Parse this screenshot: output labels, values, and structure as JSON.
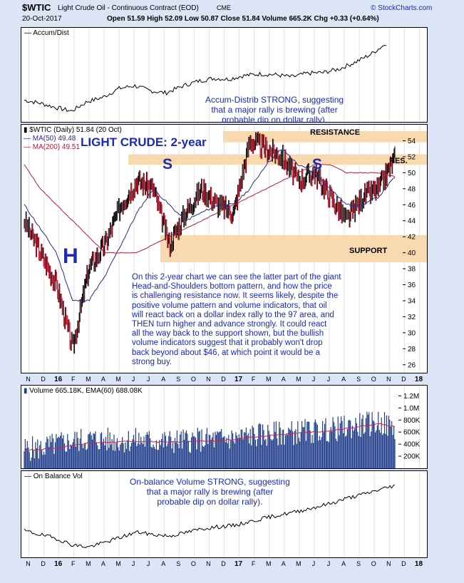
{
  "header": {
    "symbol": "$WTIC",
    "name": "Light Crude Oil - Continuous Contract (EOD)",
    "exchange": "CME",
    "site": "© StockCharts.com",
    "date": "20-Oct-2017",
    "quote": "Open 51.59  High 52.09  Low 50.87  Close 51.84  Volume 665.2K  Chg +0.33 (+0.64%)"
  },
  "accum_panel": {
    "title": "Accum/Dist",
    "note": [
      "Accum-Distrib STRONG, suggesting",
      "that a major rally is brewing (after",
      "probable dip on dollar rally)."
    ]
  },
  "price_panel": {
    "legend_price": "$WTIC (Daily) 51.84 (20 Oct)",
    "legend_ma50": "MA(50) 49.48",
    "legend_ma200": "MA(200) 49.51",
    "big_title": "LIGHT CRUDE: 2-year",
    "label_h": "H",
    "label_s1": "S",
    "label_s2": "S",
    "resistance": "RESISTANCE",
    "res": "RES.",
    "support": "SUPPORT",
    "commentary": [
      "On this 2-year chart we can see the latter part of the giant",
      "Head-and-Shoulders bottom pattern, and how the price",
      "is challenging resistance now. It seems likely, despite the",
      "positive volume pattern and volume indicators, that oil",
      "will react back on a dollar index rally to the 97 area, and",
      "THEN turn higher and advance strongly. It could react",
      "all the way back to the support shown, but the bullish",
      "volume indicators suggest that it probably won't drop",
      "back beyond about $46, at which point it would be a",
      "strong buy."
    ]
  },
  "volume_panel": {
    "legend": "Volume 665.18K, EMA(60) 688.08K"
  },
  "obv_panel": {
    "title": "On Balance Vol",
    "note": [
      "On-balance Volume STRONG, suggesting",
      "that a major rally is brewing (after",
      "probable dip on dollar rally)."
    ]
  },
  "month_labels": [
    "N",
    "D",
    "16",
    "F",
    "M",
    "A",
    "M",
    "J",
    "J",
    "A",
    "S",
    "O",
    "N",
    "D",
    "17",
    "F",
    "M",
    "A",
    "M",
    "J",
    "J",
    "A",
    "S",
    "O",
    "N",
    "D",
    "18"
  ],
  "colors": {
    "background": "#dbe5f5",
    "accent_text": "#1b2bb5",
    "price_up": "#000000",
    "price_down": "#c0102a",
    "ma50": "#2a2a8c",
    "ma200": "#b0203a",
    "zone": "#f8d9b0",
    "volume_bar": "#1f3d8a",
    "ema": "#d02050"
  },
  "chart_data": [
    {
      "type": "line",
      "title": "Accum/Dist",
      "x": [
        "N",
        "D",
        "16",
        "F",
        "M",
        "A",
        "M",
        "J",
        "J",
        "A",
        "S",
        "O",
        "N",
        "D",
        "17",
        "F",
        "M",
        "A",
        "M",
        "J",
        "J",
        "A",
        "S",
        "O"
      ],
      "values": [
        0.2,
        0.16,
        0.1,
        0.05,
        0.18,
        0.24,
        0.36,
        0.4,
        0.33,
        0.3,
        0.39,
        0.46,
        0.5,
        0.49,
        0.54,
        0.56,
        0.55,
        0.52,
        0.57,
        0.58,
        0.63,
        0.72,
        0.83,
        0.98
      ]
    },
    {
      "type": "line",
      "title": "LIGHT CRUDE: 2-year",
      "yticks": [
        26,
        28,
        30,
        32,
        34,
        36,
        38,
        40,
        42,
        44,
        46,
        48,
        50,
        52,
        54
      ],
      "ylim": [
        25,
        56
      ],
      "x": [
        "N",
        "D",
        "16",
        "F",
        "M",
        "A",
        "M",
        "J",
        "J",
        "A",
        "S",
        "O",
        "N",
        "D",
        "17",
        "F",
        "M",
        "A",
        "M",
        "J",
        "J",
        "A",
        "S",
        "O"
      ],
      "series": [
        {
          "name": "$WTIC",
          "values": [
            44,
            40,
            36,
            28,
            38,
            41,
            46,
            49,
            48,
            41,
            45,
            48,
            46,
            45,
            54,
            53,
            52,
            49,
            50,
            47,
            44,
            47,
            48,
            51.84
          ]
        },
        {
          "name": "MA(50)",
          "values": [
            46,
            43,
            40,
            34,
            34,
            37,
            41,
            45,
            48,
            46,
            44,
            45,
            46,
            46,
            48,
            51,
            53,
            51,
            50,
            48,
            46,
            46,
            47,
            49.48
          ]
        },
        {
          "name": "MA(200)",
          "values": [
            51,
            48,
            46,
            44,
            42,
            40,
            40,
            40,
            41,
            42,
            43,
            44,
            45,
            46,
            47,
            48,
            49,
            50,
            51,
            51,
            50,
            50,
            50,
            49.51
          ]
        }
      ],
      "zones": [
        {
          "label": "RESISTANCE",
          "from": 53.8,
          "to": 55.2
        },
        {
          "label": "RES.",
          "from": 51.0,
          "to": 52.3
        },
        {
          "label": "SUPPORT",
          "from": 38.8,
          "to": 42.2
        }
      ]
    },
    {
      "type": "bar",
      "title": "Volume 665.18K, EMA(60) 688.08K",
      "yticks": [
        "200K",
        "400K",
        "600K",
        "800K",
        "1.0M",
        "1.2M"
      ],
      "ylim": [
        0,
        1300
      ],
      "x": [
        "N",
        "D",
        "16",
        "F",
        "M",
        "A",
        "M",
        "J",
        "J",
        "A",
        "S",
        "O",
        "N",
        "D",
        "17",
        "F",
        "M",
        "A",
        "M",
        "J",
        "J",
        "A",
        "S",
        "O"
      ],
      "series": [
        {
          "name": "Volume",
          "values": [
            320,
            330,
            400,
            450,
            480,
            470,
            460,
            470,
            450,
            440,
            460,
            470,
            480,
            500,
            540,
            560,
            580,
            600,
            620,
            640,
            680,
            720,
            760,
            665
          ]
        },
        {
          "name": "EMA(60)",
          "values": [
            300,
            310,
            340,
            380,
            420,
            430,
            440,
            445,
            440,
            435,
            440,
            450,
            460,
            480,
            510,
            540,
            560,
            580,
            600,
            620,
            660,
            700,
            740,
            688
          ]
        }
      ]
    },
    {
      "type": "line",
      "title": "On Balance Vol",
      "x": [
        "N",
        "D",
        "16",
        "F",
        "M",
        "A",
        "M",
        "J",
        "J",
        "A",
        "S",
        "O",
        "N",
        "D",
        "17",
        "F",
        "M",
        "A",
        "M",
        "J",
        "J",
        "A",
        "S",
        "O"
      ],
      "values": [
        0.3,
        0.24,
        0.18,
        0.08,
        0.05,
        0.12,
        0.2,
        0.28,
        0.24,
        0.22,
        0.27,
        0.33,
        0.36,
        0.38,
        0.44,
        0.5,
        0.55,
        0.6,
        0.66,
        0.72,
        0.8,
        0.86,
        0.93,
        1.0
      ]
    }
  ]
}
